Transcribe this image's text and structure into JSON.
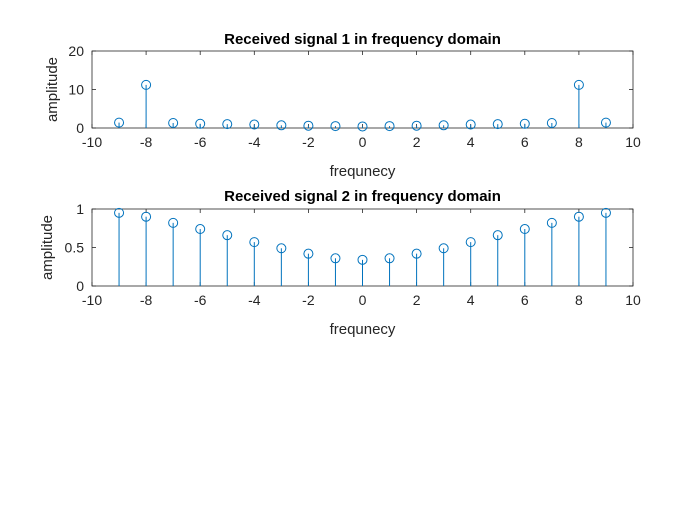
{
  "colors": {
    "stem": "#0072BD",
    "axes": "#262626",
    "background": "#ffffff"
  },
  "chart_data": [
    {
      "type": "stem",
      "title": "Received signal 1 in frequency domain",
      "xlabel": "frequnecy",
      "ylabel": "amplitude",
      "xlim": [
        -10,
        10
      ],
      "ylim": [
        0,
        20
      ],
      "xticks": [
        -10,
        -8,
        -6,
        -4,
        -2,
        0,
        2,
        4,
        6,
        8,
        10
      ],
      "yticks": [
        0,
        10,
        20
      ],
      "x": [
        -9,
        -8,
        -7,
        -6,
        -5,
        -4,
        -3,
        -2,
        -1,
        0,
        1,
        2,
        3,
        4,
        5,
        6,
        7,
        8,
        9
      ],
      "y": [
        1.4,
        11.2,
        1.3,
        1.1,
        1.0,
        0.9,
        0.7,
        0.6,
        0.5,
        0.4,
        0.5,
        0.6,
        0.7,
        0.9,
        1.0,
        1.1,
        1.3,
        11.2,
        1.4
      ],
      "grid": false
    },
    {
      "type": "stem",
      "title": "Received signal 2 in frequency domain",
      "xlabel": "frequnecy",
      "ylabel": "amplitude",
      "xlim": [
        -10,
        10
      ],
      "ylim": [
        0,
        1
      ],
      "xticks": [
        -10,
        -8,
        -6,
        -4,
        -2,
        0,
        2,
        4,
        6,
        8,
        10
      ],
      "yticks": [
        0,
        0.5,
        1
      ],
      "x": [
        -9,
        -8,
        -7,
        -6,
        -5,
        -4,
        -3,
        -2,
        -1,
        0,
        1,
        2,
        3,
        4,
        5,
        6,
        7,
        8,
        9
      ],
      "y": [
        0.95,
        0.9,
        0.82,
        0.74,
        0.66,
        0.57,
        0.49,
        0.42,
        0.36,
        0.34,
        0.36,
        0.42,
        0.49,
        0.57,
        0.66,
        0.74,
        0.82,
        0.9,
        0.95
      ],
      "grid": false
    }
  ]
}
